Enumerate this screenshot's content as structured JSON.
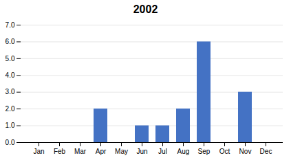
{
  "chart_data": {
    "type": "bar",
    "title": "2002",
    "categories": [
      "Jan",
      "Feb",
      "Mar",
      "Apr",
      "May",
      "Jun",
      "Jul",
      "Aug",
      "Sep",
      "Oct",
      "Nov",
      "Dec"
    ],
    "values": [
      0,
      0,
      0,
      2,
      0,
      1,
      1,
      2,
      6,
      0,
      3,
      0
    ],
    "color": "#4472C4",
    "ylim": [
      0,
      7
    ],
    "yticks": [
      0,
      1,
      2,
      3,
      4,
      5,
      6,
      7
    ],
    "grid": true
  }
}
